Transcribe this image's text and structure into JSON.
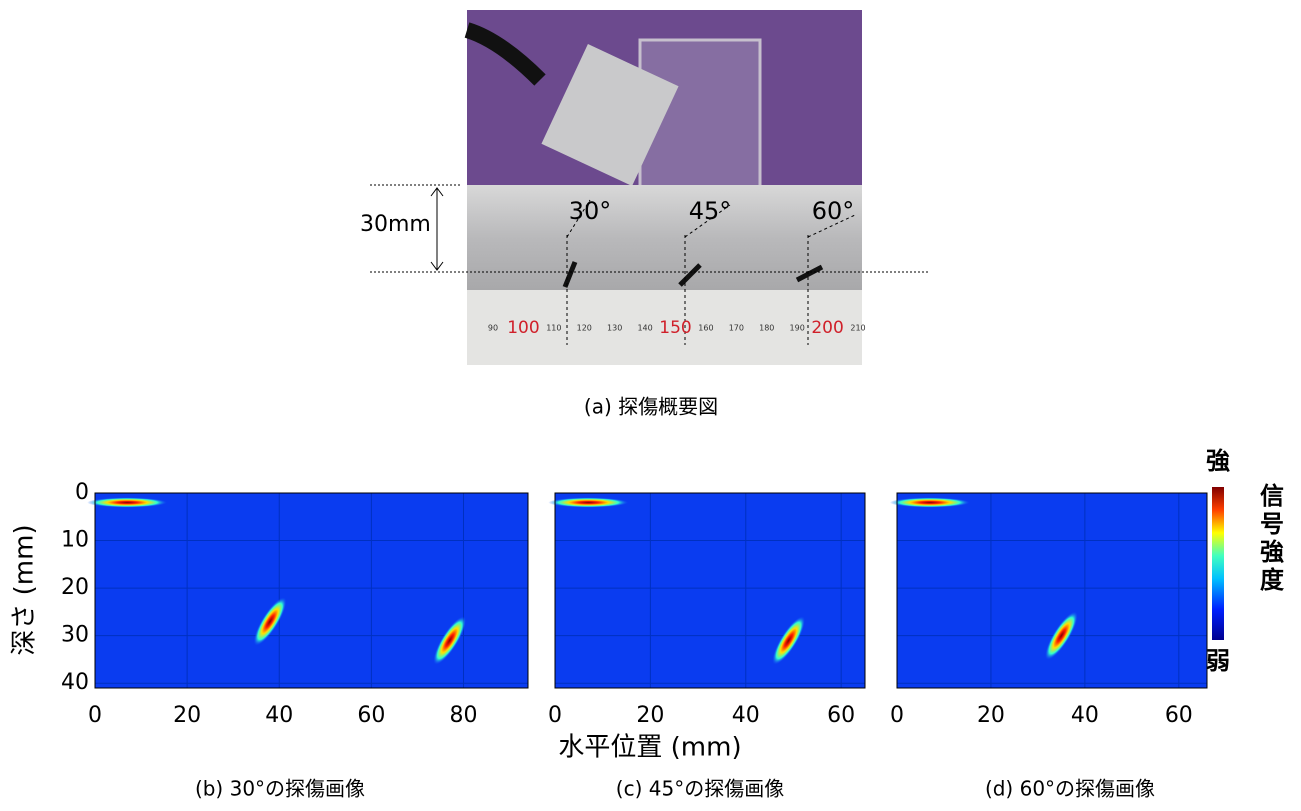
{
  "figure": {
    "photo": {
      "depth_label": "30mm",
      "angles": [
        "30°",
        "45°",
        "60°"
      ],
      "ruler_labels": [
        "90",
        "100",
        "110",
        "120",
        "130",
        "140",
        "150",
        "160",
        "170",
        "180",
        "190",
        "200",
        "210"
      ]
    },
    "caption": "(a)  探傷概要図",
    "xlabel": "水平位置 (mm)",
    "colorbar": {
      "high": "強",
      "title": [
        "信",
        "号",
        "強",
        "度"
      ],
      "low": "弱"
    }
  },
  "chart_data": [
    {
      "type": "heatmap",
      "caption": "(b) 30°の探傷画像",
      "ylabel": "深さ (mm)",
      "xlim": [
        0,
        94
      ],
      "ylim": [
        0,
        41
      ],
      "xticks": [
        0,
        20,
        40,
        60,
        80
      ],
      "yticks": [
        0,
        10,
        20,
        30,
        40
      ],
      "echoes": {
        "x": [
          7,
          77,
          38
        ],
        "y": [
          2,
          31,
          27
        ]
      }
    },
    {
      "type": "heatmap",
      "caption": "(c) 45°の探傷画像",
      "xlim": [
        0,
        65
      ],
      "ylim": [
        0,
        41
      ],
      "xticks": [
        0,
        20,
        40,
        60
      ],
      "yticks": [
        0,
        10,
        20,
        30,
        40
      ],
      "echoes": {
        "x": [
          7,
          49
        ],
        "y": [
          2,
          31
        ]
      }
    },
    {
      "type": "heatmap",
      "caption": "(d) 60°の探傷画像",
      "xlim": [
        0,
        66
      ],
      "ylim": [
        0,
        41
      ],
      "xticks": [
        0,
        20,
        40,
        60
      ],
      "yticks": [
        0,
        10,
        20,
        30,
        40
      ],
      "echoes": {
        "x": [
          7,
          35
        ],
        "y": [
          2,
          30
        ]
      }
    }
  ]
}
